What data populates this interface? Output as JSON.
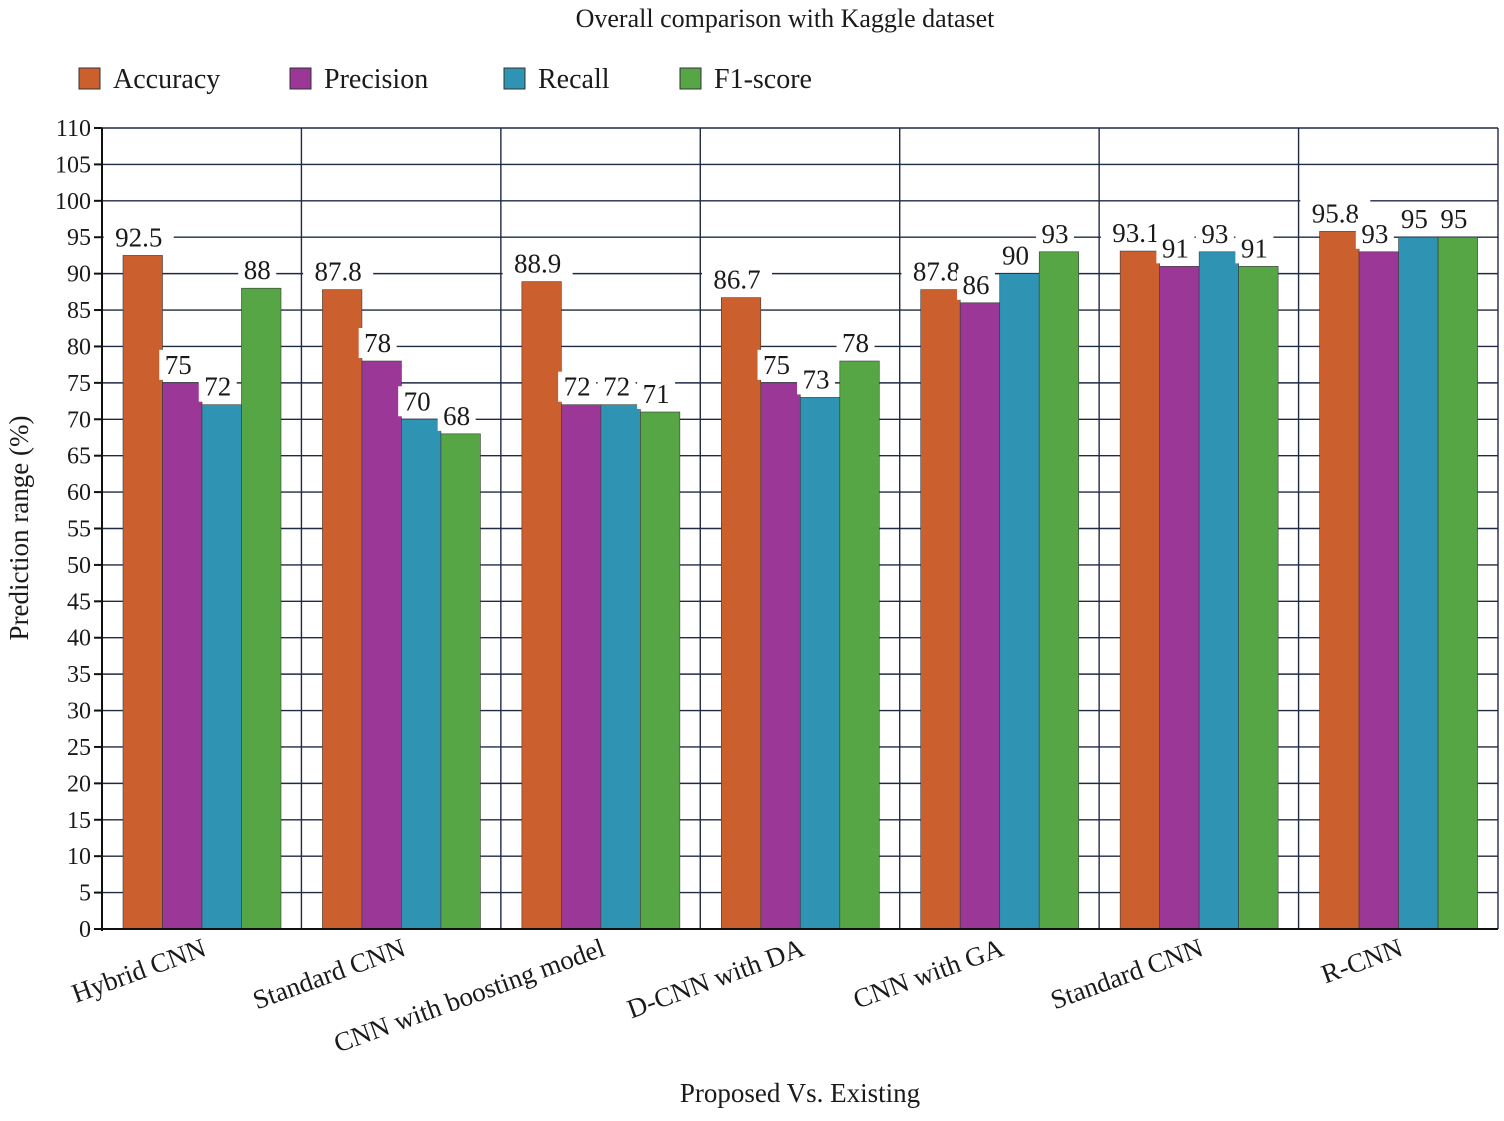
{
  "chart_data": {
    "type": "bar",
    "title": "Overall comparison with Kaggle dataset",
    "xlabel": "Proposed Vs. Existing",
    "ylabel": "Prediction range (%)",
    "ylim": [
      0,
      110
    ],
    "ytick_step": 5,
    "grid": true,
    "legend_position": "top-left",
    "categories": [
      "Hybrid CNN",
      "Standard CNN",
      "CNN with boosting model",
      "D-CNN with DA",
      "CNN with GA",
      "Standard CNN",
      "R-CNN"
    ],
    "series": [
      {
        "name": "Accuracy",
        "color": "#cc5f2e",
        "values": [
          92.5,
          87.8,
          88.9,
          86.7,
          87.8,
          93.1,
          95.8
        ]
      },
      {
        "name": "Precision",
        "color": "#9b3797",
        "values": [
          75,
          78,
          72,
          75,
          86,
          91,
          93
        ]
      },
      {
        "name": "Recall",
        "color": "#2f93b3",
        "values": [
          72,
          70,
          72,
          73,
          90,
          93,
          95
        ]
      },
      {
        "name": "F1-score",
        "color": "#56a645",
        "values": [
          88,
          68,
          71,
          78,
          93,
          91,
          95
        ]
      }
    ],
    "data_labels": [
      [
        "92.5",
        "75",
        "72",
        "88"
      ],
      [
        "87.8",
        "78",
        "70",
        "68"
      ],
      [
        "88.9",
        "72",
        "72",
        "71"
      ],
      [
        "86.7",
        "75",
        "73",
        "78"
      ],
      [
        "87.8",
        "86",
        "90",
        "93"
      ],
      [
        "93.1",
        "91",
        "93",
        "91"
      ],
      [
        "95.8",
        "93",
        "95",
        "95"
      ]
    ]
  }
}
